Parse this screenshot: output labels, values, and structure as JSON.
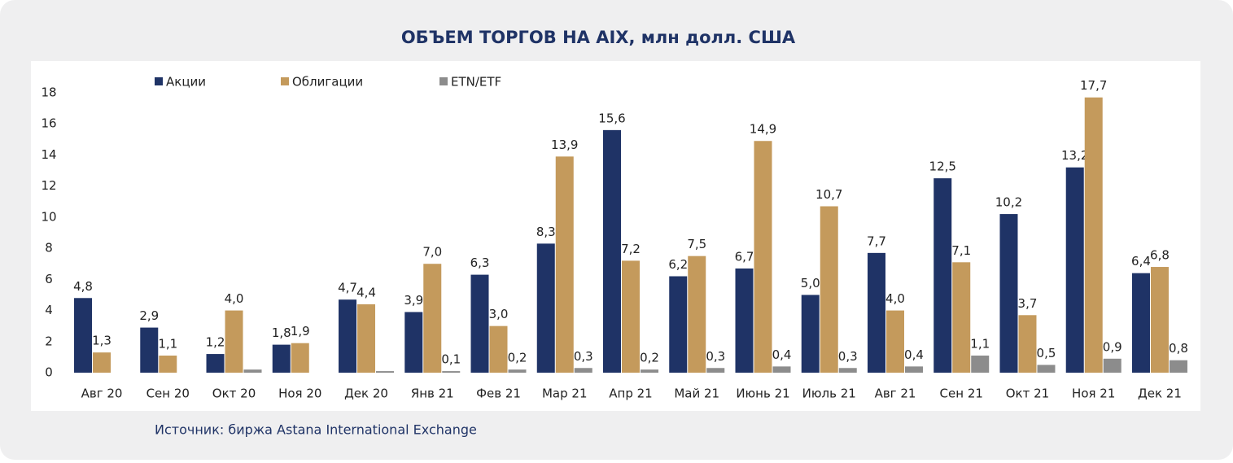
{
  "chart_data": {
    "type": "bar",
    "title": "ОБЪЕМ ТОРГОВ НА AIX,  млн долл. США",
    "source": "Источник: биржа Astana International Exchange",
    "categories": [
      "Авг 20",
      "Сен 20",
      "Окт 20",
      "Ноя 20",
      "Дек 20",
      "Янв 21",
      "Фев 21",
      "Мар 21",
      "Апр 21",
      "Май 21",
      "Июнь 21",
      "Июль 21",
      "Авг 21",
      "Сен 21",
      "Окт 21",
      "Ноя 21",
      "Дек 21"
    ],
    "series": [
      {
        "name": "Акции",
        "color": "#1f3366",
        "values": [
          4.8,
          2.9,
          1.2,
          1.8,
          4.7,
          3.9,
          6.3,
          8.3,
          15.6,
          6.2,
          6.7,
          5.0,
          7.7,
          12.5,
          10.2,
          13.2,
          6.4
        ],
        "value_labels": [
          "4,8",
          "2,9",
          "1,2",
          "1,8",
          "4,7",
          "3,9",
          "6,3",
          "8,3",
          "15,6",
          "6,2",
          "6,7",
          "5,0",
          "7,7",
          "12,5",
          "10,2",
          "13,2",
          "6,4"
        ]
      },
      {
        "name": "Облигации",
        "color": "#c49a5c",
        "values": [
          1.3,
          1.1,
          4.0,
          1.9,
          4.4,
          7.0,
          3.0,
          13.9,
          7.2,
          7.5,
          14.9,
          10.7,
          4.0,
          7.1,
          3.7,
          17.7,
          6.8
        ],
        "value_labels": [
          "1,3",
          "1,1",
          "4,0",
          "1,9",
          "4,4",
          "7,0",
          "3,0",
          "13,9",
          "7,2",
          "7,5",
          "14,9",
          "10,7",
          "4,0",
          "7,1",
          "3,7",
          "17,7",
          "6,8"
        ]
      },
      {
        "name": "ETN/ETF",
        "color": "#8c8c8c",
        "values": [
          null,
          null,
          0.2,
          null,
          0.1,
          0.1,
          0.2,
          0.3,
          0.2,
          0.3,
          0.4,
          0.3,
          0.4,
          1.1,
          0.5,
          0.9,
          0.8
        ],
        "value_labels": [
          null,
          null,
          null,
          null,
          null,
          "0,1",
          "0,2",
          "0,3",
          "0,2",
          "0,3",
          "0,4",
          "0,3",
          "0,4",
          "1,1",
          "0,5",
          "0,9",
          "0,8"
        ]
      }
    ],
    "ylim": [
      0,
      18
    ],
    "yticks": [
      0,
      2,
      4,
      6,
      8,
      10,
      12,
      14,
      16,
      18
    ],
    "grid": false
  }
}
